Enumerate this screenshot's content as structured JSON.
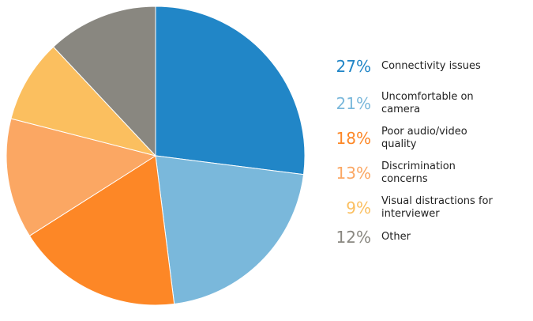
{
  "chart_data": {
    "type": "pie",
    "categories": [
      "Connectivity issues",
      "Uncomfortable on camera",
      "Poor audio/video quality",
      "Discrimination concerns",
      "Visual distractions for interviewer",
      "Other"
    ],
    "values": [
      27,
      21,
      18,
      13,
      9,
      12
    ],
    "labels": [
      "27%",
      "21%",
      "18%",
      "13%",
      "9%",
      "12%"
    ],
    "colors": [
      "#2186c7",
      "#7ab8db",
      "#fd8726",
      "#fba763",
      "#fbbf5f",
      "#898780"
    ],
    "start_angle": "12 o'clock",
    "direction": "clockwise",
    "legend_position": "right"
  },
  "legend": [
    {
      "pct": "27%",
      "label": "Connectivity issues"
    },
    {
      "pct": "21%",
      "label": "Uncomfortable on camera"
    },
    {
      "pct": "18%",
      "label": "Poor audio/video quality"
    },
    {
      "pct": "13%",
      "label": "Discrimination concerns"
    },
    {
      "pct": "9%",
      "label": "Visual distractions for interviewer"
    },
    {
      "pct": "12%",
      "label": "Other"
    }
  ]
}
